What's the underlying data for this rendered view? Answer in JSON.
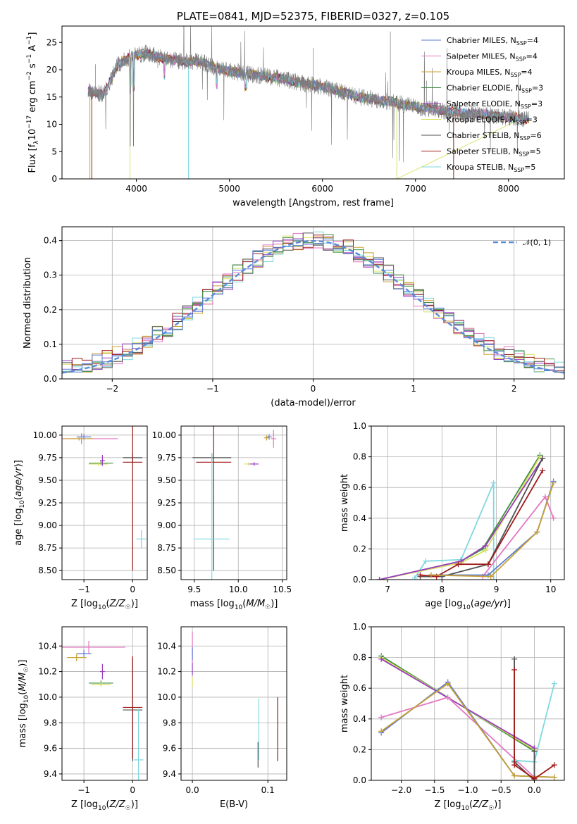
{
  "colors": {
    "Chabrier MILES": "#5b7bd5",
    "Salpeter MILES": "#e377c2",
    "Kroupa MILES": "#c8a032",
    "Chabrier ELODIE": "#3c8c3c",
    "Salpeter ELODIE": "#9a3fc0",
    "Kroupa ELODIE": "#d8e060",
    "Chabrier STELIB": "#505050",
    "Salpeter STELIB": "#a01a1a",
    "Kroupa STELIB": "#7fd8e0",
    "gauss": "#5b8bd8"
  },
  "chart_data": [
    {
      "id": "spectrum",
      "type": "line",
      "title": "PLATE=0841, MJD=52375, FIBERID=0327, z=0.105",
      "xlabel": "wavelength [Angstrom, rest frame]",
      "ylabel": "Flux [fλ10⁻¹⁷ erg cm⁻² s⁻¹ A⁻¹]",
      "xlim": [
        3200,
        8600
      ],
      "ylim": [
        0,
        28
      ],
      "xticks": [
        4000,
        5000,
        6000,
        7000,
        8000
      ],
      "yticks": [
        0,
        5,
        10,
        15,
        20,
        25
      ],
      "grid": false,
      "legend_position": "top-right",
      "legend": [
        {
          "label": "Chabrier MILES, N",
          "sub": "SSP",
          "suffix": "=4"
        },
        {
          "label": "Salpeter MILES, N",
          "sub": "SSP",
          "suffix": "=4"
        },
        {
          "label": "Kroupa MILES, N",
          "sub": "SSP",
          "suffix": "=4"
        },
        {
          "label": "Chabrier ELODIE, N",
          "sub": "SSP",
          "suffix": "=3"
        },
        {
          "label": "Salpeter ELODIE, N",
          "sub": "SSP",
          "suffix": "=3"
        },
        {
          "label": "Kroupa ELODIE, N",
          "sub": "SSP",
          "suffix": "=3"
        },
        {
          "label": "Chabrier STELIB, N",
          "sub": "SSP",
          "suffix": "=6"
        },
        {
          "label": "Salpeter STELIB, N",
          "sub": "SSP",
          "suffix": "=5"
        },
        {
          "label": "Kroupa STELIB, N",
          "sub": "SSP",
          "suffix": "=5"
        }
      ],
      "continuum": [
        [
          3480,
          16
        ],
        [
          3650,
          15.5
        ],
        [
          3800,
          21
        ],
        [
          3950,
          22.5
        ],
        [
          4100,
          23
        ],
        [
          4300,
          22
        ],
        [
          4500,
          21.5
        ],
        [
          4700,
          21.5
        ],
        [
          4900,
          20
        ],
        [
          5100,
          19.5
        ],
        [
          5300,
          19
        ],
        [
          5500,
          18.5
        ],
        [
          5800,
          17.5
        ],
        [
          6100,
          16.5
        ],
        [
          6400,
          15
        ],
        [
          6700,
          14.2
        ],
        [
          7000,
          13.2
        ],
        [
          7300,
          12.5
        ],
        [
          7600,
          12
        ],
        [
          8000,
          11.3
        ],
        [
          8200,
          11
        ]
      ],
      "absorption_dips": [
        [
          3934,
          0
        ],
        [
          3969,
          0
        ],
        [
          4300,
          0
        ],
        [
          4560,
          0
        ],
        [
          6800,
          0
        ],
        [
          7400,
          0
        ],
        [
          3520,
          0
        ]
      ]
    },
    {
      "id": "residuals",
      "type": "line",
      "xlabel": "(data-model)/error",
      "ylabel": "Normed distribution",
      "xlim": [
        -2.5,
        2.5
      ],
      "ylim": [
        0,
        0.44
      ],
      "xticks": [
        -2,
        -1,
        0,
        1,
        2
      ],
      "yticks": [
        0.0,
        0.1,
        0.2,
        0.3,
        0.4
      ],
      "grid": true,
      "legend_position": "top-right",
      "legend": "𝒩(0, 1)",
      "bins": 50,
      "shape": "gaussian-histogram"
    },
    {
      "id": "age-vs-Z",
      "type": "scatter",
      "xlabel": "Z [log₁₀(Z/Z☉)]",
      "ylabel": "age  [log₁₀(age/yr)]",
      "xlim": [
        -1.45,
        0.3
      ],
      "ylim": [
        8.4,
        10.1
      ],
      "xticks": [
        -1,
        0
      ],
      "yticks": [
        8.5,
        8.75,
        9.0,
        9.25,
        9.5,
        9.75,
        10.0
      ],
      "grid": true,
      "errorbars": [
        {
          "model": "Salpeter MILES",
          "x": -1.05,
          "xerr": 0.75,
          "y": 9.96,
          "yerr": 0.06
        },
        {
          "model": "Chabrier MILES",
          "x": -1.0,
          "xerr": 0.15,
          "y": 9.98,
          "yerr": 0.03
        },
        {
          "model": "Kroupa MILES",
          "x": -1.1,
          "xerr": 0.3,
          "y": 9.96,
          "yerr": 0.02
        },
        {
          "model": "Chabrier ELODIE",
          "x": -0.65,
          "xerr": 0.25,
          "y": 9.69,
          "yerr": 0.02
        },
        {
          "model": "Kroupa ELODIE",
          "x": -0.7,
          "xerr": 0.2,
          "y": 9.68,
          "yerr": 0.02
        },
        {
          "model": "Salpeter ELODIE",
          "x": -0.62,
          "xerr": 0.05,
          "y": 9.72,
          "yerr": 0.06
        },
        {
          "model": "Chabrier STELIB",
          "x": 0.0,
          "xerr": 0.2,
          "y": 9.75,
          "yerr": 0.05
        },
        {
          "model": "Salpeter STELIB",
          "x": 0.0,
          "xerr": 0.2,
          "y": 9.7,
          "yerr": 1.2
        },
        {
          "model": "Kroupa STELIB",
          "x": 0.18,
          "xerr": 0.1,
          "y": 8.85,
          "yerr": 0.1
        }
      ]
    },
    {
      "id": "age-vs-mass",
      "type": "scatter",
      "xlabel": "mass [log₁₀(M/M☉)]",
      "ylabel": "",
      "xlim": [
        9.35,
        10.55
      ],
      "ylim": [
        8.4,
        10.1
      ],
      "xticks": [
        9.5,
        10.0,
        10.5
      ],
      "yticks": [
        8.5,
        8.75,
        9.0,
        9.25,
        9.5,
        9.75,
        10.0
      ],
      "grid": true,
      "errorbars": [
        {
          "model": "Chabrier STELIB",
          "x": 9.7,
          "xerr": 0.22,
          "y": 9.75,
          "yerr": 0.05
        },
        {
          "model": "Salpeter STELIB",
          "x": 9.72,
          "xerr": 0.2,
          "y": 9.7,
          "yerr": 1.2
        },
        {
          "model": "Kroupa STELIB",
          "x": 9.7,
          "xerr": 0.2,
          "y": 8.85,
          "yerr": 0.95
        },
        {
          "model": "Kroupa ELODIE",
          "x": 10.12,
          "xerr": 0.05,
          "y": 9.68,
          "yerr": 0.02
        },
        {
          "model": "Salpeter ELODIE",
          "x": 10.18,
          "xerr": 0.05,
          "y": 9.68,
          "yerr": 0.02
        },
        {
          "model": "Chabrier MILES",
          "x": 10.35,
          "xerr": 0.03,
          "y": 9.98,
          "yerr": 0.03
        },
        {
          "model": "Kroupa MILES",
          "x": 10.32,
          "xerr": 0.03,
          "y": 9.97,
          "yerr": 0.03
        },
        {
          "model": "Salpeter MILES",
          "x": 10.4,
          "xerr": 0.03,
          "y": 9.96,
          "yerr": 0.1
        }
      ]
    },
    {
      "id": "weight-vs-age",
      "type": "line",
      "xlabel": "age  [log₁₀(age/yr)]",
      "ylabel": "mass weight",
      "xlim": [
        6.7,
        10.25
      ],
      "ylim": [
        0,
        1.0
      ],
      "xticks": [
        7,
        8,
        9,
        10
      ],
      "yticks": [
        0.0,
        0.2,
        0.4,
        0.6,
        0.8,
        1.0
      ],
      "grid": true,
      "series": [
        {
          "name": "Kroupa STELIB",
          "x": [
            7.5,
            7.7,
            8.35,
            8.95,
            8.95
          ],
          "y": [
            0.01,
            0.12,
            0.13,
            0.63,
            0.0
          ]
        },
        {
          "name": "Chabrier ELODIE",
          "x": [
            6.85,
            8.35,
            8.75,
            9.8
          ],
          "y": [
            0.0,
            0.12,
            0.2,
            0.81
          ]
        },
        {
          "name": "Kroupa ELODIE",
          "x": [
            6.85,
            8.35,
            8.8,
            9.8
          ],
          "y": [
            0.0,
            0.11,
            0.19,
            0.8
          ]
        },
        {
          "name": "Salpeter ELODIE",
          "x": [
            6.85,
            8.35,
            8.8,
            9.85
          ],
          "y": [
            0.0,
            0.12,
            0.22,
            0.79
          ]
        },
        {
          "name": "Chabrier STELIB",
          "x": [
            7.6,
            8.0,
            8.85,
            9.85
          ],
          "y": [
            0.02,
            0.02,
            0.1,
            0.79
          ]
        },
        {
          "name": "Salpeter STELIB",
          "x": [
            7.6,
            7.9,
            8.3,
            8.85,
            9.85
          ],
          "y": [
            0.03,
            0.02,
            0.1,
            0.1,
            0.71
          ]
        },
        {
          "name": "Salpeter MILES",
          "x": [
            8.75,
            9.9,
            10.05
          ],
          "y": [
            0.02,
            0.54,
            0.4
          ]
        },
        {
          "name": "Chabrier MILES",
          "x": [
            7.8,
            8.85,
            9.75,
            10.05
          ],
          "y": [
            0.03,
            0.03,
            0.31,
            0.64
          ]
        },
        {
          "name": "Kroupa MILES",
          "x": [
            7.8,
            8.9,
            9.75,
            10.05
          ],
          "y": [
            0.03,
            0.02,
            0.31,
            0.63
          ]
        }
      ]
    },
    {
      "id": "mass-vs-Z",
      "type": "scatter",
      "xlabel": "Z [log₁₀(Z/Z☉)]",
      "ylabel": "mass [log₁₀(M/M☉)]",
      "xlim": [
        -1.45,
        0.3
      ],
      "ylim": [
        9.35,
        10.55
      ],
      "xticks": [
        -1,
        0
      ],
      "yticks": [
        9.4,
        9.6,
        9.8,
        10.0,
        10.2,
        10.4
      ],
      "grid": true,
      "errorbars": [
        {
          "model": "Salpeter MILES",
          "x": -0.9,
          "xerr": 0.75,
          "y": 10.39,
          "yerr": 0.05
        },
        {
          "model": "Chabrier MILES",
          "x": -1.0,
          "xerr": 0.15,
          "y": 10.34,
          "yerr": 0.03
        },
        {
          "model": "Kroupa MILES",
          "x": -1.15,
          "xerr": 0.2,
          "y": 10.31,
          "yerr": 0.03
        },
        {
          "model": "Chabrier ELODIE",
          "x": -0.65,
          "xerr": 0.25,
          "y": 10.11,
          "yerr": 0.02
        },
        {
          "model": "Kroupa ELODIE",
          "x": -0.65,
          "xerr": 0.2,
          "y": 10.1,
          "yerr": 0.02
        },
        {
          "model": "Salpeter ELODIE",
          "x": -0.62,
          "xerr": 0.05,
          "y": 10.2,
          "yerr": 0.06
        },
        {
          "model": "Chabrier STELIB",
          "x": 0.0,
          "xerr": 0.2,
          "y": 9.9,
          "yerr": 0.4
        },
        {
          "model": "Salpeter STELIB",
          "x": 0.0,
          "xerr": 0.2,
          "y": 9.92,
          "yerr": 0.4
        },
        {
          "model": "Kroupa STELIB",
          "x": 0.12,
          "xerr": 0.1,
          "y": 9.51,
          "yerr": 0.4
        }
      ]
    },
    {
      "id": "mass-vs-EBV",
      "type": "scatter",
      "xlabel": "E(B-V)",
      "ylabel": "",
      "xlim": [
        -0.015,
        0.125
      ],
      "ylim": [
        9.35,
        10.55
      ],
      "xticks": [
        0.0,
        0.1
      ],
      "yticks": [
        9.4,
        9.6,
        9.8,
        10.0,
        10.2,
        10.4
      ],
      "grid": true,
      "errorbars": [
        {
          "model": "Salpeter MILES",
          "x": 0.0,
          "xerr": 0,
          "y": 10.39,
          "yerr": 0.12
        },
        {
          "model": "Chabrier MILES",
          "x": 0.0,
          "xerr": 0,
          "y": 10.34,
          "yerr": 0.05
        },
        {
          "model": "Salpeter ELODIE",
          "x": 0.0,
          "xerr": 0,
          "y": 10.22,
          "yerr": 0.05
        },
        {
          "model": "Kroupa ELODIE",
          "x": 0.0,
          "xerr": 0,
          "y": 10.12,
          "yerr": 0.04
        },
        {
          "model": "Chabrier STELIB",
          "x": 0.087,
          "xerr": 0,
          "y": 9.55,
          "yerr": 0.1
        },
        {
          "model": "Kroupa STELIB",
          "x": 0.088,
          "xerr": 0,
          "y": 9.75,
          "yerr": 0.24
        },
        {
          "model": "Salpeter STELIB",
          "x": 0.113,
          "xerr": 0,
          "y": 9.75,
          "yerr": 0.25
        }
      ]
    },
    {
      "id": "weight-vs-Z",
      "type": "line",
      "xlabel": "Z [log₁₀(Z/Z☉)]",
      "ylabel": "mass weight",
      "xlim": [
        -2.45,
        0.45
      ],
      "ylim": [
        0,
        1.0
      ],
      "xticks": [
        -2.0,
        -1.5,
        -1.0,
        -0.5,
        0.0
      ],
      "yticks": [
        0.0,
        0.2,
        0.4,
        0.6,
        0.8,
        1.0
      ],
      "grid": true,
      "series": [
        {
          "name": "Chabrier ELODIE",
          "x": [
            -2.3,
            0.0
          ],
          "y": [
            0.81,
            0.19
          ]
        },
        {
          "name": "Kroupa ELODIE",
          "x": [
            -2.3,
            0.0
          ],
          "y": [
            0.8,
            0.2
          ]
        },
        {
          "name": "Salpeter ELODIE",
          "x": [
            -2.3,
            0.0
          ],
          "y": [
            0.79,
            0.21
          ]
        },
        {
          "name": "Salpeter MILES",
          "x": [
            -2.3,
            -1.3,
            0.0,
            0.0
          ],
          "y": [
            0.41,
            0.54,
            0.02,
            0.0
          ]
        },
        {
          "name": "Chabrier MILES",
          "x": [
            -2.3,
            -1.3,
            -0.3,
            0.3
          ],
          "y": [
            0.31,
            0.64,
            0.03,
            0.02
          ]
        },
        {
          "name": "Kroupa MILES",
          "x": [
            -2.3,
            -1.3,
            -0.3,
            0.3
          ],
          "y": [
            0.32,
            0.63,
            0.03,
            0.02
          ]
        },
        {
          "name": "Kroupa STELIB",
          "x": [
            -0.3,
            0.0,
            0.3
          ],
          "y": [
            0.13,
            0.12,
            0.63
          ]
        },
        {
          "name": "Chabrier STELIB",
          "x": [
            -0.3,
            -0.3,
            0.0,
            0.0
          ],
          "y": [
            0.79,
            0.12,
            0.0,
            0.19
          ]
        },
        {
          "name": "Salpeter STELIB",
          "x": [
            -0.3,
            -0.3,
            0.0,
            0.3
          ],
          "y": [
            0.72,
            0.1,
            0.01,
            0.1
          ]
        }
      ]
    }
  ]
}
